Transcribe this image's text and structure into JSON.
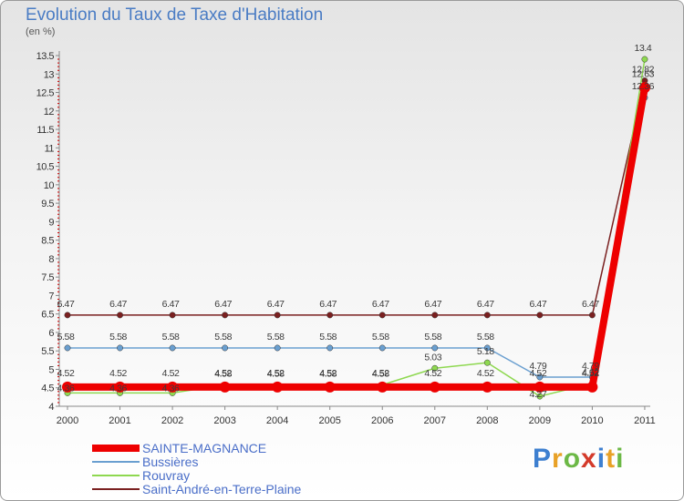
{
  "header": {
    "title": "Evolution du Taux de Taxe d'Habitation",
    "unit": "(en %)"
  },
  "brand": {
    "letters": [
      "P",
      "r",
      "o",
      "x",
      "i",
      "t",
      "i"
    ],
    "letter_colors": [
      "#3d7fd0",
      "#e8a126",
      "#6cb846",
      "#d43a2a",
      "#3d7fd0",
      "#e8a126",
      "#6cb846"
    ]
  },
  "chart_data": {
    "type": "line",
    "title": "Evolution du Taux de Taxe d'Habitation",
    "ylabel": "(en %)",
    "xlabel": "",
    "ylim": [
      4,
      13.5
    ],
    "ytick_step": 0.5,
    "grid": false,
    "legend_position": "bottom-left",
    "categories": [
      "2000",
      "2001",
      "2002",
      "2003",
      "2004",
      "2005",
      "2006",
      "2007",
      "2008",
      "2009",
      "2010",
      "2011"
    ],
    "series": [
      {
        "name": "SAINTE-MAGNANCE",
        "color": "#ee0000",
        "values": [
          4.52,
          4.52,
          4.52,
          4.52,
          4.52,
          4.52,
          4.52,
          4.52,
          4.52,
          4.52,
          4.52,
          12.63
        ]
      },
      {
        "name": "Bussières",
        "color": "#6a9fd0",
        "values": [
          5.58,
          5.58,
          5.58,
          5.58,
          5.58,
          5.58,
          5.58,
          5.58,
          5.58,
          4.79,
          4.79,
          12.36
        ]
      },
      {
        "name": "Rouvray",
        "color": "#8ed850",
        "values": [
          4.36,
          4.36,
          4.36,
          4.58,
          4.58,
          4.58,
          4.58,
          5.03,
          5.18,
          4.27,
          4.62,
          13.4
        ]
      },
      {
        "name": "Saint-André-en-Terre-Plaine",
        "color": "#7a2020",
        "values": [
          6.47,
          6.47,
          6.47,
          6.47,
          6.47,
          6.47,
          6.47,
          6.47,
          6.47,
          6.47,
          6.47,
          12.82
        ]
      }
    ]
  }
}
